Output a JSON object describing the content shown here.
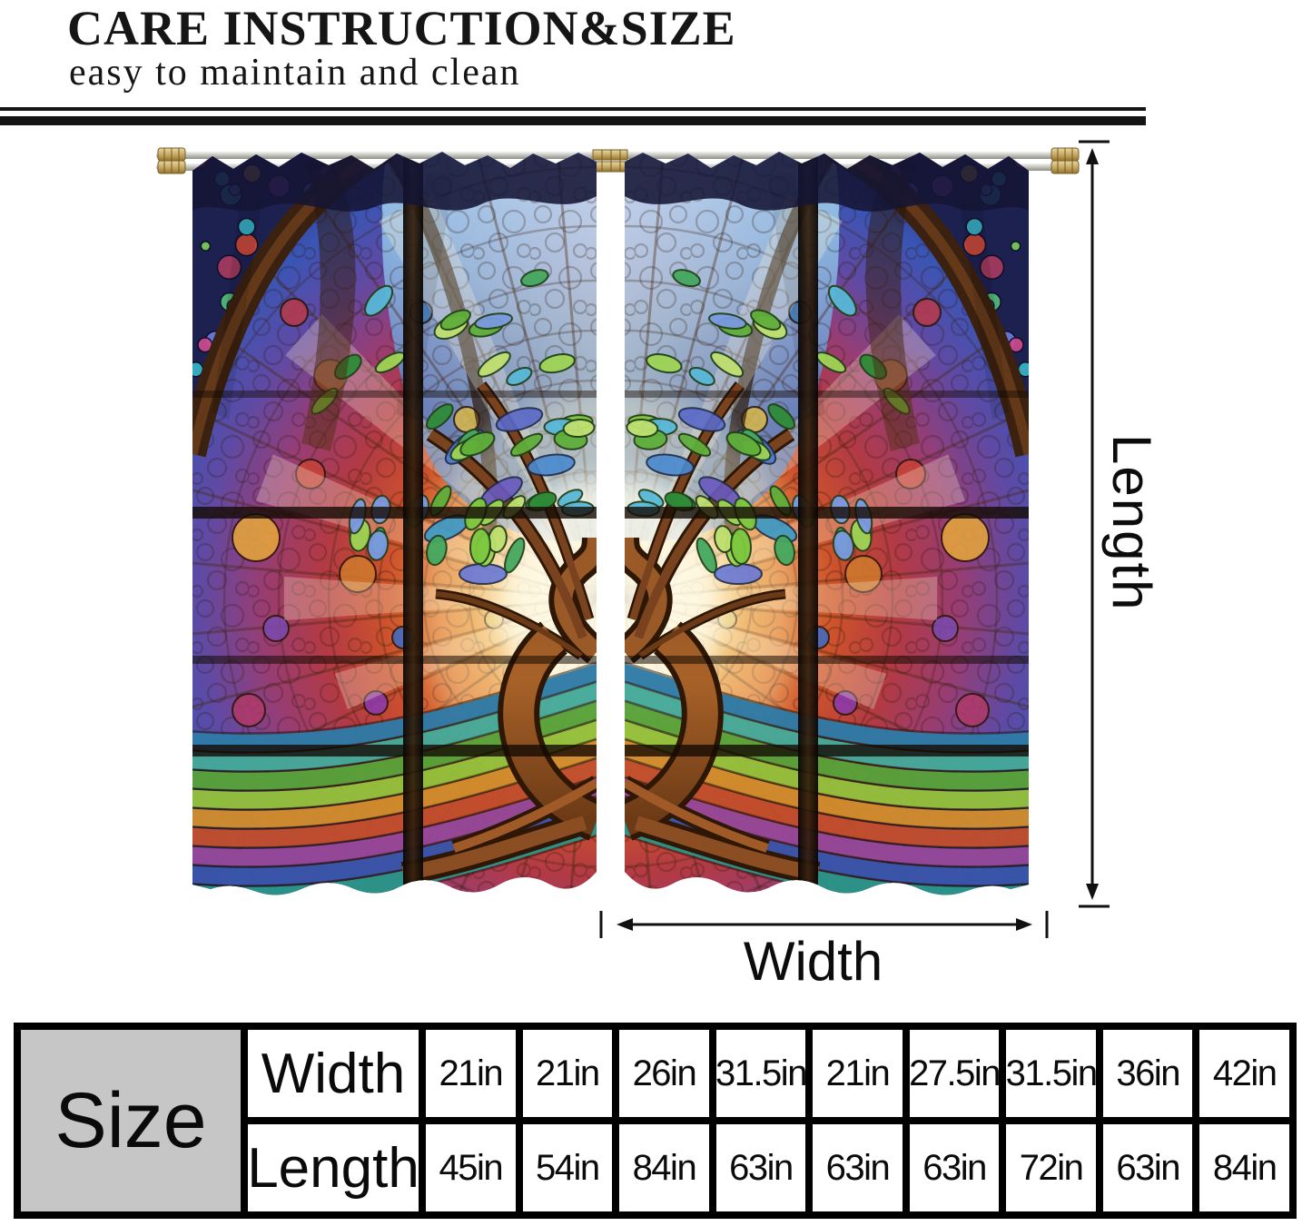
{
  "header": {
    "title": "CARE INSTRUCTION&SIZE",
    "subtitle": "easy to maintain and clean"
  },
  "diagram": {
    "length_label": "Length",
    "width_label": "Width"
  },
  "size_table": {
    "corner_label": "Size",
    "width_row": {
      "label": "Width",
      "values": [
        "21in",
        "21in",
        "26in",
        "31.5in",
        "21in",
        "27.5in",
        "31.5in",
        "36in",
        "42in"
      ]
    },
    "length_row": {
      "label": "Length",
      "values": [
        "45in",
        "54in",
        "84in",
        "63in",
        "63in",
        "63in",
        "72in",
        "63in",
        "84in"
      ]
    }
  },
  "artwork": {
    "panel_count": 2,
    "palette": {
      "glow_core": "#fffdf2",
      "amber": "#f0b052",
      "flame_orange": "#e17e34",
      "red": "#cc512c",
      "crimson": "#b23a44",
      "magenta": "#973d74",
      "violet": "#5f4aa4",
      "blue": "#3a55b4",
      "deep_blue": "#2c3c8e",
      "canopy_blue": "#8fc3e8",
      "leaf_green": "#5fae3a",
      "trunk_brown": "#8a4e22",
      "frame_dark": "#2e1c0e",
      "rod_silver": "#c9c9c4",
      "finial_brass": "#c8ab66"
    }
  }
}
